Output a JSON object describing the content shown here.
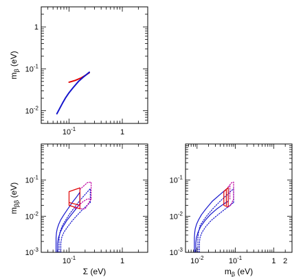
{
  "chart_data": [
    {
      "type": "line",
      "panel": "top-left",
      "xlabel": "",
      "ylabel": "m_β (eV)",
      "ylabel_main": "m",
      "ylabel_sub": "β",
      "ylabel_unit": " (eV)",
      "xscale": "log",
      "yscale": "log",
      "xlim": [
        0.03,
        3
      ],
      "ylim": [
        0.005,
        3
      ],
      "x_ticks": [
        {
          "value": 0.1,
          "label": "10",
          "exp": "-1"
        },
        {
          "value": 1,
          "label": "1",
          "exp": ""
        }
      ],
      "y_ticks": [
        {
          "value": 0.01,
          "label": "10",
          "exp": "-2"
        },
        {
          "value": 0.1,
          "label": "10",
          "exp": "-1"
        },
        {
          "value": 1,
          "label": "1",
          "exp": ""
        }
      ],
      "series": [
        {
          "color": "#e00000",
          "style": "solid",
          "width": 2,
          "x": [
            0.1,
            0.13,
            0.17,
            0.21,
            0.24
          ],
          "y": [
            0.048,
            0.053,
            0.061,
            0.072,
            0.081
          ]
        },
        {
          "color": "#1515cc",
          "style": "solid",
          "width": 2,
          "x": [
            0.059,
            0.062,
            0.067,
            0.075,
            0.085,
            0.1,
            0.12,
            0.15,
            0.19,
            0.24
          ],
          "y": [
            0.0085,
            0.0095,
            0.0115,
            0.015,
            0.02,
            0.027,
            0.036,
            0.05,
            0.065,
            0.083
          ]
        }
      ]
    },
    {
      "type": "line",
      "panel": "bottom-left",
      "xlabel": "Σ (eV)",
      "ylabel": "m_ββ (eV)",
      "ylabel_main": "m",
      "ylabel_sub": "ββ",
      "ylabel_unit": " (eV)",
      "xscale": "log",
      "yscale": "log",
      "xlim": [
        0.03,
        3
      ],
      "ylim": [
        0.001,
        1
      ],
      "x_ticks": [
        {
          "value": 0.1,
          "label": "10",
          "exp": "-1"
        },
        {
          "value": 1,
          "label": "1",
          "exp": ""
        }
      ],
      "y_ticks": [
        {
          "value": 0.001,
          "label": "10",
          "exp": "-3"
        },
        {
          "value": 0.01,
          "label": "10",
          "exp": "-2"
        },
        {
          "value": 0.1,
          "label": "10",
          "exp": "-1"
        }
      ],
      "series": [
        {
          "color": "#1515cc",
          "style": "solid",
          "width": 1.2,
          "x": [
            0.057,
            0.057,
            0.058,
            0.06,
            0.064,
            0.07,
            0.08,
            0.095,
            0.115,
            0.14,
            0.16,
            0.16
          ],
          "y": [
            0.001,
            0.0025,
            0.0035,
            0.0045,
            0.006,
            0.008,
            0.011,
            0.016,
            0.024,
            0.035,
            0.046,
            0.046
          ]
        },
        {
          "color": "#1515cc",
          "style": "solid",
          "width": 1.2,
          "x": [
            0.061,
            0.061,
            0.063,
            0.068,
            0.076,
            0.09,
            0.11,
            0.135,
            0.16
          ],
          "y": [
            0.001,
            0.0018,
            0.0025,
            0.0035,
            0.005,
            0.0075,
            0.011,
            0.016,
            0.022
          ]
        },
        {
          "color": "#1515cc",
          "style": "solid",
          "width": 1.2,
          "x": [
            0.16,
            0.16
          ],
          "y": [
            0.022,
            0.046
          ]
        },
        {
          "color": "#1515cc",
          "style": "dotted",
          "width": 1.2,
          "x": [
            0.065,
            0.065,
            0.068,
            0.075,
            0.085,
            0.1,
            0.125,
            0.155,
            0.2,
            0.25
          ],
          "y": [
            0.001,
            0.0025,
            0.0038,
            0.0055,
            0.0075,
            0.011,
            0.017,
            0.026,
            0.04,
            0.058
          ]
        },
        {
          "color": "#1515cc",
          "style": "dotted",
          "width": 1.2,
          "x": [
            0.07,
            0.07,
            0.073,
            0.08,
            0.095,
            0.115,
            0.145,
            0.185,
            0.25
          ],
          "y": [
            0.001,
            0.0018,
            0.0026,
            0.0036,
            0.0052,
            0.0075,
            0.011,
            0.016,
            0.024
          ]
        },
        {
          "color": "#1515cc",
          "style": "dotted",
          "width": 1.2,
          "x": [
            0.25,
            0.25
          ],
          "y": [
            0.024,
            0.058
          ]
        },
        {
          "color": "#e00000",
          "style": "solid",
          "width": 1.2,
          "x": [
            0.1,
            0.16,
            0.16,
            0.1,
            0.1
          ],
          "y": [
            0.048,
            0.061,
            0.016,
            0.02,
            0.048
          ]
        },
        {
          "color": "#e00000",
          "style": "solid",
          "width": 1.2,
          "x": [
            0.1,
            0.16
          ],
          "y": [
            0.024,
            0.02
          ]
        },
        {
          "color": "#c000a0",
          "style": "dotted",
          "width": 1.2,
          "x": [
            0.16,
            0.22,
            0.26,
            0.26,
            0.2,
            0.16
          ],
          "y": [
            0.055,
            0.085,
            0.088,
            0.03,
            0.016,
            0.016
          ]
        },
        {
          "color": "#c000a0",
          "style": "dotted",
          "width": 1.2,
          "x": [
            0.13,
            0.18,
            0.22,
            0.26
          ],
          "y": [
            0.016,
            0.025,
            0.03,
            0.03
          ]
        }
      ]
    },
    {
      "type": "line",
      "panel": "bottom-right",
      "xlabel": "m_β (eV)",
      "xlabel_main": "m",
      "xlabel_sub": "β",
      "xlabel_unit": " (eV)",
      "ylabel": "",
      "xscale": "log",
      "yscale": "log",
      "xlim": [
        0.005,
        3
      ],
      "ylim": [
        0.001,
        1
      ],
      "x_ticks": [
        {
          "value": 0.01,
          "label": "10",
          "exp": "-2"
        },
        {
          "value": 0.1,
          "label": "10",
          "exp": "-1"
        },
        {
          "value": 1,
          "label": "1",
          "exp": ""
        },
        {
          "value": 2,
          "label": "2",
          "exp": ""
        }
      ],
      "y_ticks": [
        {
          "value": 0.001,
          "label": "10",
          "exp": "-3"
        },
        {
          "value": 0.01,
          "label": "10",
          "exp": "-2"
        },
        {
          "value": 0.1,
          "label": "10",
          "exp": "-1"
        }
      ],
      "series": [
        {
          "color": "#1515cc",
          "style": "solid",
          "width": 1.2,
          "x": [
            0.0085,
            0.0085,
            0.0087,
            0.009,
            0.0097,
            0.011,
            0.013,
            0.017,
            0.025,
            0.04,
            0.065
          ],
          "y": [
            0.001,
            0.0025,
            0.0035,
            0.0045,
            0.006,
            0.008,
            0.011,
            0.016,
            0.026,
            0.04,
            0.062
          ]
        },
        {
          "color": "#1515cc",
          "style": "solid",
          "width": 1.2,
          "x": [
            0.0093,
            0.0093,
            0.0096,
            0.0105,
            0.0125,
            0.016,
            0.022,
            0.033,
            0.05,
            0.065
          ],
          "y": [
            0.001,
            0.0018,
            0.0025,
            0.0035,
            0.0052,
            0.0075,
            0.011,
            0.016,
            0.022,
            0.026
          ]
        },
        {
          "color": "#1515cc",
          "style": "solid",
          "width": 1.2,
          "x": [
            0.065,
            0.065
          ],
          "y": [
            0.026,
            0.062
          ]
        },
        {
          "color": "#1515cc",
          "style": "dotted",
          "width": 1.2,
          "x": [
            0.0105,
            0.0105,
            0.011,
            0.012,
            0.0145,
            0.019,
            0.027,
            0.04,
            0.062,
            0.09
          ],
          "y": [
            0.001,
            0.0025,
            0.0038,
            0.0055,
            0.0075,
            0.011,
            0.017,
            0.026,
            0.04,
            0.058
          ]
        },
        {
          "color": "#1515cc",
          "style": "dotted",
          "width": 1.2,
          "x": [
            0.0115,
            0.0115,
            0.012,
            0.0135,
            0.017,
            0.023,
            0.035,
            0.055,
            0.09
          ],
          "y": [
            0.001,
            0.0018,
            0.0026,
            0.0036,
            0.0052,
            0.0075,
            0.011,
            0.016,
            0.024
          ]
        },
        {
          "color": "#1515cc",
          "style": "dotted",
          "width": 1.2,
          "x": [
            0.09,
            0.09
          ],
          "y": [
            0.024,
            0.058
          ]
        },
        {
          "color": "#e00000",
          "style": "solid",
          "width": 1.2,
          "x": [
            0.05,
            0.065,
            0.065,
            0.05,
            0.05
          ],
          "y": [
            0.048,
            0.062,
            0.018,
            0.02,
            0.048
          ]
        },
        {
          "color": "#e00000",
          "style": "solid",
          "width": 1.2,
          "x": [
            0.058,
            0.058
          ],
          "y": [
            0.02,
            0.055
          ]
        },
        {
          "color": "#c000a0",
          "style": "dotted",
          "width": 1.2,
          "x": [
            0.065,
            0.08,
            0.09,
            0.09,
            0.075,
            0.065
          ],
          "y": [
            0.065,
            0.085,
            0.088,
            0.03,
            0.02,
            0.018
          ]
        },
        {
          "color": "#c000a0",
          "style": "dotted",
          "width": 1.2,
          "x": [
            0.072,
            0.072
          ],
          "y": [
            0.03,
            0.075
          ]
        }
      ]
    }
  ]
}
